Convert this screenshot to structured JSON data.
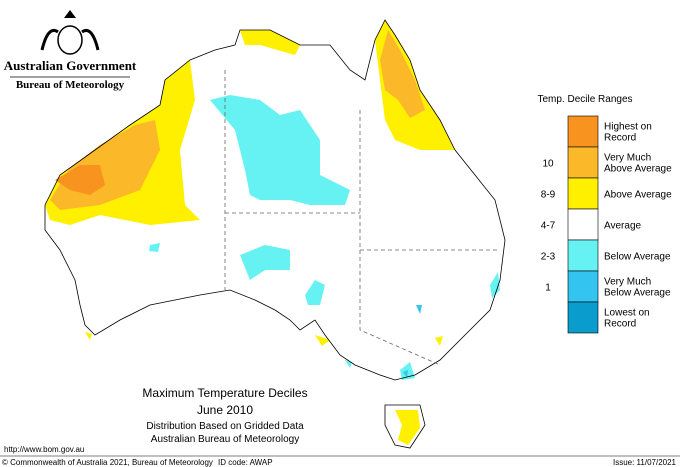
{
  "header": {
    "government": "Australian Government",
    "bureau": "Bureau of Meteorology"
  },
  "legend": {
    "title": "Temp. Decile Ranges",
    "items": [
      {
        "label": "Highest on Record",
        "color": "#f7931e"
      },
      {
        "range": "10",
        "label": "Very Much Above Average",
        "color": "#fbb829"
      },
      {
        "range": "8-9",
        "label": "Above Average",
        "color": "#fff000"
      },
      {
        "range": "4-7",
        "label": "Average",
        "color": "#ffffff"
      },
      {
        "range": "2-3",
        "label": "Below Average",
        "color": "#66f2f2"
      },
      {
        "range": "1",
        "label": "Very Much Below Average",
        "color": "#33c4ef"
      },
      {
        "label": "Lowest on Record",
        "color": "#0a9ccc"
      }
    ]
  },
  "caption": {
    "title": "Maximum Temperature Deciles",
    "period": "June 2010",
    "method": "Distribution Based on Gridded Data",
    "source": "Australian Bureau of Meteorology"
  },
  "footer": {
    "url": "http://www.bom.gov.au",
    "copyright": "© Commonwealth of Australia 2021, Bureau of Meteorology",
    "id_code": "ID code: AWAP",
    "issued": "Issue: 11/07/2021"
  }
}
